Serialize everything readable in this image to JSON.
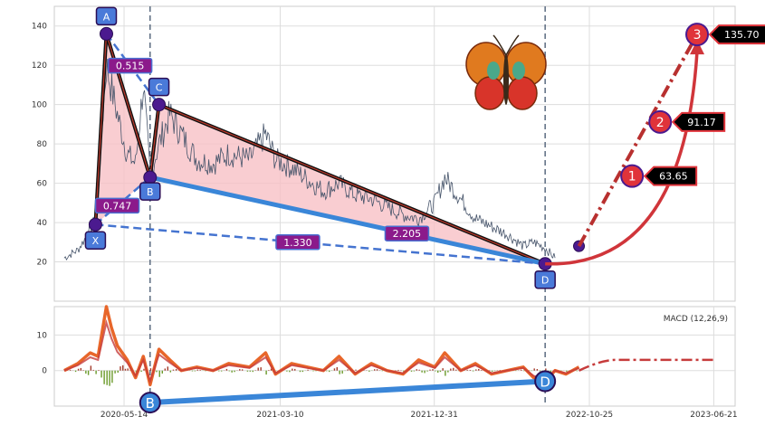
{
  "chart_data": [
    {
      "type": "line",
      "panel": "price",
      "title": "",
      "xlabel": "",
      "ylabel": "",
      "ylim": [
        0,
        150
      ],
      "grid": true,
      "yticks": [
        20,
        40,
        60,
        80,
        100,
        120,
        140
      ],
      "colors": {
        "price": "#46546a",
        "pattern_fill": "#f7c1c6",
        "xd_leg": "#3a86d8",
        "dashed": "#4574d0",
        "target": "#d0353a"
      },
      "price_series": {
        "name": "Price",
        "x": [
          "2020-01-20",
          "2020-02-15",
          "2020-03-10",
          "2020-03-20",
          "2020-04-10",
          "2020-05-01",
          "2020-05-20",
          "2020-06-05",
          "2020-06-20",
          "2020-07-03",
          "2020-07-20",
          "2020-08-10",
          "2020-09-01",
          "2020-10-01",
          "2020-11-01",
          "2020-12-01",
          "2021-01-10",
          "2021-02-10",
          "2021-03-01",
          "2021-04-01",
          "2021-05-01",
          "2021-06-01",
          "2021-07-01",
          "2021-08-01",
          "2021-09-01",
          "2021-10-01",
          "2021-11-01",
          "2021-12-01",
          "2022-01-01",
          "2022-01-20",
          "2022-02-20",
          "2022-03-20",
          "2022-04-20",
          "2022-05-20",
          "2022-06-20",
          "2022-07-10",
          "2022-08-01",
          "2022-08-20"
        ],
        "y": [
          22,
          26,
          36,
          42,
          120,
          95,
          75,
          70,
          110,
          64,
          80,
          95,
          85,
          72,
          70,
          75,
          72,
          85,
          72,
          68,
          62,
          56,
          60,
          54,
          52,
          48,
          44,
          42,
          50,
          63,
          52,
          42,
          38,
          34,
          28,
          30,
          27,
          22
        ]
      },
      "pattern_points": [
        {
          "label": "X",
          "date": "2020-03-20",
          "value": 39
        },
        {
          "label": "A",
          "date": "2020-04-10",
          "value": 136
        },
        {
          "label": "B",
          "date": "2020-07-03",
          "value": 63
        },
        {
          "label": "C",
          "date": "2020-07-20",
          "value": 100
        },
        {
          "label": "D",
          "date": "2022-08-01",
          "value": 19
        }
      ],
      "ratios": [
        {
          "label": "0.515",
          "value": 0.515
        },
        {
          "label": "0.747",
          "value": 0.747
        },
        {
          "label": "2.205",
          "value": 2.205
        },
        {
          "label": "1.330",
          "value": 1.33
        }
      ],
      "last_close": {
        "date": "2022-10-05",
        "value": 28
      },
      "targets": [
        {
          "label": "1",
          "date": "2023-01-15",
          "value": 63.65,
          "text": "63.65"
        },
        {
          "label": "2",
          "date": "2023-03-10",
          "value": 91.17,
          "text": "91.17"
        },
        {
          "label": "3",
          "date": "2023-05-20",
          "value": 135.7,
          "text": "135.70"
        }
      ]
    },
    {
      "type": "line",
      "panel": "macd",
      "title": "MACD (12,26,9)",
      "ylim": [
        -10,
        18
      ],
      "yticks": [
        -10,
        0,
        10
      ],
      "xticklabels": [
        "2020-05-14",
        "2021-03-10",
        "2021-12-31",
        "2022-10-25",
        "2023-06-21"
      ],
      "xticks": [
        "2020-05-14",
        "2021-03-10",
        "2021-12-31",
        "2022-10-25",
        "2023-06-21"
      ],
      "macd_series": {
        "name": "MACD",
        "x": [
          "2020-01-20",
          "2020-02-15",
          "2020-03-10",
          "2020-03-25",
          "2020-04-10",
          "2020-04-20",
          "2020-05-01",
          "2020-05-20",
          "2020-06-05",
          "2020-06-20",
          "2020-07-03",
          "2020-07-20",
          "2020-08-10",
          "2020-09-01",
          "2020-10-01",
          "2020-11-01",
          "2020-12-01",
          "2021-01-10",
          "2021-02-10",
          "2021-03-01",
          "2021-04-01",
          "2021-05-01",
          "2021-06-01",
          "2021-07-01",
          "2021-08-01",
          "2021-09-01",
          "2021-10-01",
          "2021-11-01",
          "2021-12-01",
          "2022-01-01",
          "2022-01-20",
          "2022-02-20",
          "2022-03-20",
          "2022-04-20",
          "2022-05-20",
          "2022-06-20",
          "2022-07-10",
          "2022-08-01",
          "2022-08-20",
          "2022-09-10",
          "2022-10-05"
        ],
        "y": [
          0,
          2,
          5,
          4,
          18,
          12,
          7,
          3,
          -2,
          4,
          -4,
          6,
          3,
          0,
          1,
          0,
          2,
          1,
          5,
          -1,
          2,
          1,
          0,
          4,
          -1,
          2,
          0,
          -1,
          3,
          1,
          5,
          0,
          2,
          -1,
          0,
          1,
          -2,
          -3,
          0,
          -1,
          1
        ]
      },
      "macd_projection": {
        "start": "2022-10-05",
        "end": "2023-06-21",
        "value": 3
      },
      "xd_points": [
        {
          "label": "B",
          "date": "2020-07-03",
          "value": -9
        },
        {
          "label": "D",
          "date": "2022-08-01",
          "value": -3
        }
      ]
    }
  ]
}
